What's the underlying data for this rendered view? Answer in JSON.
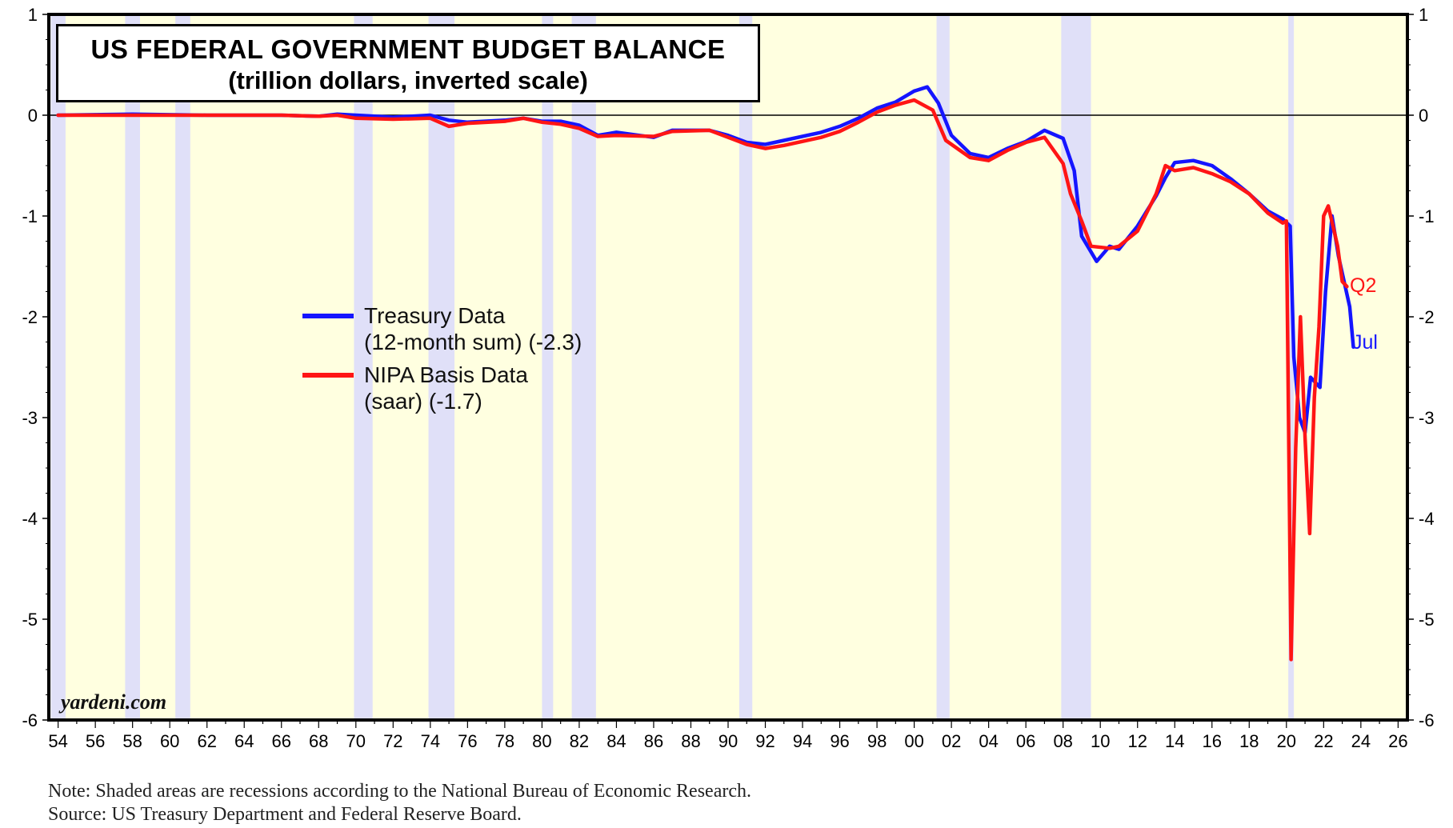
{
  "chart_data": {
    "type": "line",
    "title": "US FEDERAL GOVERNMENT BUDGET BALANCE",
    "subtitle": "(trillion dollars, inverted scale)",
    "ylim": [
      -6,
      1
    ],
    "y_ticks": [
      "1",
      "0",
      "-1",
      "-2",
      "-3",
      "-4",
      "-5",
      "-6"
    ],
    "xlim": [
      1953.5,
      2026.5
    ],
    "x_tick_labels": [
      "54",
      "56",
      "58",
      "60",
      "62",
      "64",
      "66",
      "68",
      "70",
      "72",
      "74",
      "76",
      "78",
      "80",
      "82",
      "84",
      "86",
      "88",
      "90",
      "92",
      "94",
      "96",
      "98",
      "00",
      "02",
      "04",
      "06",
      "08",
      "10",
      "12",
      "14",
      "16",
      "18",
      "20",
      "22",
      "24",
      "26"
    ],
    "recessions": [
      [
        1953.6,
        1954.4
      ],
      [
        1957.6,
        1958.4
      ],
      [
        1960.3,
        1961.1
      ],
      [
        1969.9,
        1970.9
      ],
      [
        1973.9,
        1975.3
      ],
      [
        1980.0,
        1980.6
      ],
      [
        1981.6,
        1982.9
      ],
      [
        1990.6,
        1991.3
      ],
      [
        2001.2,
        2001.9
      ],
      [
        2007.9,
        2009.5
      ],
      [
        2020.1,
        2020.4
      ]
    ],
    "zero_line": 0,
    "series": [
      {
        "name": "Treasury Data",
        "label_line1": "Treasury Data",
        "label_line2": "(12-month sum) (-2.3)",
        "color": "#1515ff",
        "end_label": "Jul",
        "points": [
          [
            1954,
            0
          ],
          [
            1958,
            0.01
          ],
          [
            1962,
            0
          ],
          [
            1966,
            0
          ],
          [
            1968,
            -0.01
          ],
          [
            1969,
            0.01
          ],
          [
            1972,
            -0.02
          ],
          [
            1974,
            0
          ],
          [
            1975,
            -0.05
          ],
          [
            1976,
            -0.07
          ],
          [
            1978,
            -0.05
          ],
          [
            1979,
            -0.03
          ],
          [
            1980,
            -0.06
          ],
          [
            1981,
            -0.06
          ],
          [
            1982,
            -0.1
          ],
          [
            1983,
            -0.2
          ],
          [
            1984,
            -0.17
          ],
          [
            1986,
            -0.22
          ],
          [
            1987,
            -0.15
          ],
          [
            1989,
            -0.15
          ],
          [
            1990,
            -0.2
          ],
          [
            1991,
            -0.27
          ],
          [
            1992,
            -0.29
          ],
          [
            1993,
            -0.25
          ],
          [
            1995,
            -0.17
          ],
          [
            1996,
            -0.11
          ],
          [
            1997,
            -0.03
          ],
          [
            1998,
            0.07
          ],
          [
            1999,
            0.13
          ],
          [
            2000,
            0.24
          ],
          [
            2000.7,
            0.28
          ],
          [
            2001.3,
            0.12
          ],
          [
            2002,
            -0.2
          ],
          [
            2003,
            -0.38
          ],
          [
            2004,
            -0.42
          ],
          [
            2005,
            -0.33
          ],
          [
            2006,
            -0.26
          ],
          [
            2007,
            -0.15
          ],
          [
            2008,
            -0.23
          ],
          [
            2008.6,
            -0.55
          ],
          [
            2009,
            -1.2
          ],
          [
            2009.8,
            -1.45
          ],
          [
            2010.5,
            -1.3
          ],
          [
            2011,
            -1.33
          ],
          [
            2012,
            -1.1
          ],
          [
            2013,
            -0.8
          ],
          [
            2013.5,
            -0.62
          ],
          [
            2014,
            -0.47
          ],
          [
            2015,
            -0.45
          ],
          [
            2016,
            -0.5
          ],
          [
            2017,
            -0.63
          ],
          [
            2018,
            -0.78
          ],
          [
            2019,
            -0.95
          ],
          [
            2019.8,
            -1.03
          ],
          [
            2020.2,
            -1.1
          ],
          [
            2020.4,
            -2.4
          ],
          [
            2020.7,
            -3.0
          ],
          [
            2021.0,
            -3.15
          ],
          [
            2021.3,
            -2.6
          ],
          [
            2021.8,
            -2.7
          ],
          [
            2022.1,
            -1.75
          ],
          [
            2022.45,
            -1.0
          ],
          [
            2022.8,
            -1.4
          ],
          [
            2023.4,
            -1.9
          ],
          [
            2023.6,
            -2.3
          ]
        ]
      },
      {
        "name": "NIPA Basis Data",
        "label_line1": "NIPA Basis Data",
        "label_line2": "(saar) (-1.7)",
        "color": "#ff1515",
        "end_label": "Q2",
        "points": [
          [
            1954,
            0
          ],
          [
            1958,
            0
          ],
          [
            1962,
            0
          ],
          [
            1966,
            0
          ],
          [
            1968,
            -0.01
          ],
          [
            1969,
            0
          ],
          [
            1970,
            -0.03
          ],
          [
            1972,
            -0.04
          ],
          [
            1974,
            -0.03
          ],
          [
            1975,
            -0.11
          ],
          [
            1976,
            -0.08
          ],
          [
            1978,
            -0.06
          ],
          [
            1979,
            -0.03
          ],
          [
            1980,
            -0.07
          ],
          [
            1981,
            -0.09
          ],
          [
            1982,
            -0.13
          ],
          [
            1983,
            -0.21
          ],
          [
            1984,
            -0.2
          ],
          [
            1986,
            -0.21
          ],
          [
            1987,
            -0.16
          ],
          [
            1989,
            -0.15
          ],
          [
            1990,
            -0.22
          ],
          [
            1991,
            -0.29
          ],
          [
            1992,
            -0.33
          ],
          [
            1993,
            -0.3
          ],
          [
            1995,
            -0.22
          ],
          [
            1996,
            -0.16
          ],
          [
            1997,
            -0.07
          ],
          [
            1998,
            0.03
          ],
          [
            1999,
            0.1
          ],
          [
            2000,
            0.15
          ],
          [
            2001,
            0.05
          ],
          [
            2001.7,
            -0.25
          ],
          [
            2003,
            -0.42
          ],
          [
            2004,
            -0.45
          ],
          [
            2005,
            -0.35
          ],
          [
            2006,
            -0.27
          ],
          [
            2007,
            -0.22
          ],
          [
            2008,
            -0.48
          ],
          [
            2008.4,
            -0.78
          ],
          [
            2009,
            -1.05
          ],
          [
            2009.5,
            -1.3
          ],
          [
            2010.5,
            -1.32
          ],
          [
            2011,
            -1.3
          ],
          [
            2012,
            -1.15
          ],
          [
            2013,
            -0.78
          ],
          [
            2013.5,
            -0.5
          ],
          [
            2014,
            -0.55
          ],
          [
            2015,
            -0.52
          ],
          [
            2016,
            -0.58
          ],
          [
            2017,
            -0.66
          ],
          [
            2018,
            -0.78
          ],
          [
            2019,
            -0.97
          ],
          [
            2019.8,
            -1.07
          ],
          [
            2020.0,
            -1.05
          ],
          [
            2020.25,
            -5.4
          ],
          [
            2020.5,
            -3.3
          ],
          [
            2020.75,
            -2.0
          ],
          [
            2021.0,
            -3.2
          ],
          [
            2021.25,
            -4.15
          ],
          [
            2021.5,
            -2.8
          ],
          [
            2021.75,
            -2.1
          ],
          [
            2022.0,
            -1.0
          ],
          [
            2022.25,
            -0.9
          ],
          [
            2022.5,
            -1.1
          ],
          [
            2022.75,
            -1.3
          ],
          [
            2023.0,
            -1.65
          ],
          [
            2023.25,
            -1.7
          ]
        ]
      }
    ],
    "legend_position": "center-left",
    "source_watermark": "yardeni.com",
    "note": "Note: Shaded areas are recessions according to the National Bureau of Economic Research.",
    "source": "Source: US Treasury Department and Federal Reserve Board."
  },
  "colors": {
    "plot_background": "#ffffe0",
    "recession_shading": "#e0e0f8",
    "axis": "#000000",
    "grid": "#000000"
  }
}
